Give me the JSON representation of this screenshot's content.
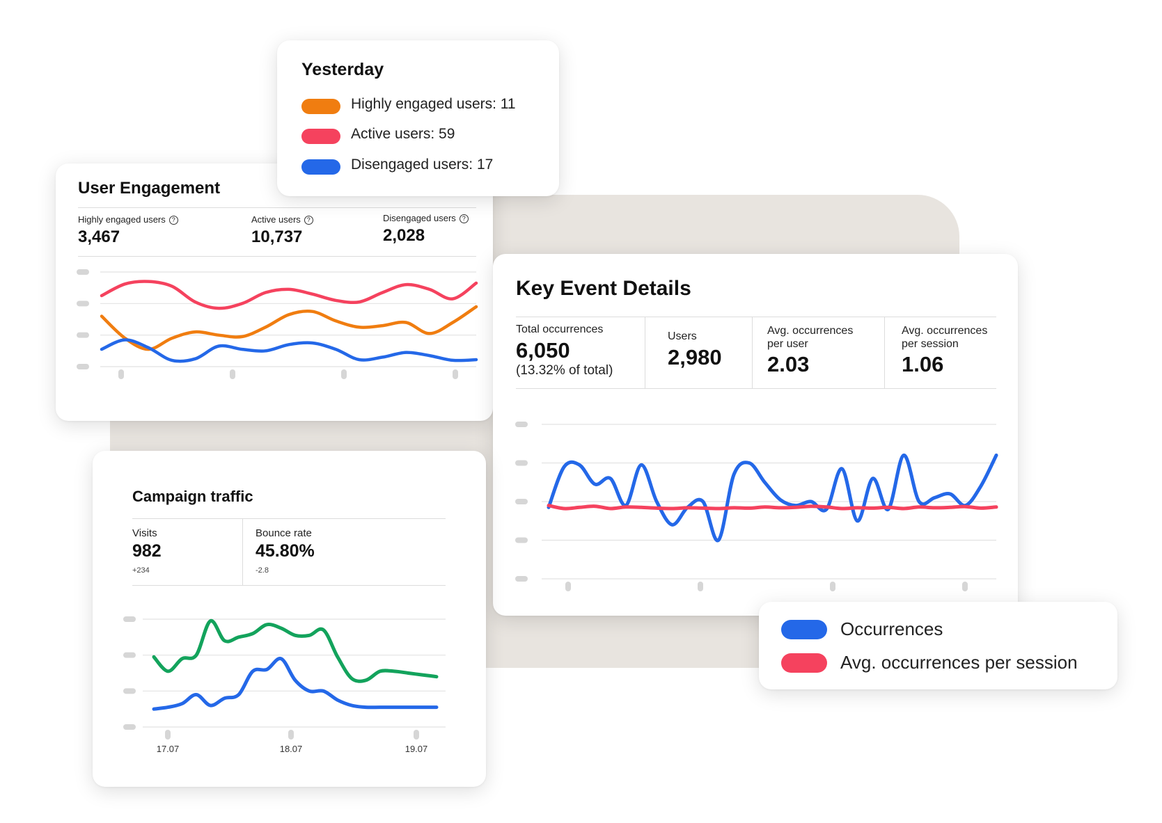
{
  "colors": {
    "orange": "#f07d10",
    "red": "#f5425e",
    "blue": "#2468e8",
    "green": "#13a35c",
    "grid": "#e2e2e2",
    "tick": "#d6d6d6"
  },
  "yesterday": {
    "title": "Yesterday",
    "items": [
      {
        "label": "Highly engaged users: 11",
        "color": "#f07d10"
      },
      {
        "label": "Active users: 59",
        "color": "#f5425e"
      },
      {
        "label": "Disengaged users: 17",
        "color": "#2468e8"
      }
    ]
  },
  "engagement": {
    "title": "User Engagement",
    "help_icon": "question-circle-icon",
    "metrics": [
      {
        "label": "Highly engaged users",
        "value": "3,467"
      },
      {
        "label": "Active users",
        "value": "10,737"
      },
      {
        "label": "Disengaged users",
        "value": "2,028"
      }
    ]
  },
  "key_event": {
    "title": "Key Event Details",
    "metrics": [
      {
        "label": "Total occurrences",
        "value": "6,050",
        "sub": "(13.32% of total)"
      },
      {
        "label": "Users",
        "value": "2,980"
      },
      {
        "label": "Avg. occurrences per user",
        "label_line1": "Avg. occurrences",
        "label_line2": "per user",
        "value": "2.03"
      },
      {
        "label": "Avg. occurrences per session",
        "label_line1": "Avg. occurrences",
        "label_line2": "per session",
        "value": "1.06"
      }
    ],
    "legend": [
      {
        "label": "Occurrences",
        "color": "#2468e8"
      },
      {
        "label": "Avg. occurrences per session",
        "color": "#f5425e"
      }
    ]
  },
  "campaign": {
    "title": "Campaign traffic",
    "metrics": [
      {
        "label": "Visits",
        "value": "982",
        "delta": "+234"
      },
      {
        "label": "Bounce rate",
        "value": "45.80%",
        "delta": "-2.8"
      }
    ],
    "x_labels": [
      "17.07",
      "18.07",
      "19.07"
    ]
  },
  "chart_data": [
    {
      "id": "user-engagement",
      "type": "line",
      "title": "User Engagement",
      "x": [
        0,
        1,
        2,
        3,
        4,
        5,
        6,
        7,
        8,
        9,
        10,
        11,
        12,
        13,
        14,
        15,
        16
      ],
      "ylim": [
        0,
        3
      ],
      "grid": true,
      "series": [
        {
          "name": "Active users",
          "color": "#f5425e",
          "values": [
            2.25,
            2.62,
            2.7,
            2.55,
            2.05,
            1.85,
            2.0,
            2.35,
            2.45,
            2.3,
            2.1,
            2.05,
            2.35,
            2.6,
            2.45,
            2.15,
            2.65
          ]
        },
        {
          "name": "Highly engaged users",
          "color": "#f07d10",
          "values": [
            1.6,
            0.9,
            0.55,
            0.9,
            1.1,
            1.0,
            0.95,
            1.25,
            1.65,
            1.75,
            1.45,
            1.25,
            1.3,
            1.4,
            1.05,
            1.4,
            1.9
          ]
        },
        {
          "name": "Disengaged users",
          "color": "#2468e8",
          "values": [
            0.55,
            0.85,
            0.6,
            0.2,
            0.25,
            0.65,
            0.55,
            0.5,
            0.7,
            0.75,
            0.55,
            0.22,
            0.3,
            0.45,
            0.35,
            0.2,
            0.22
          ]
        }
      ]
    },
    {
      "id": "key-event-details",
      "type": "line",
      "title": "Key Event Details",
      "x": [
        0,
        1,
        2,
        3,
        4,
        5,
        6,
        7,
        8,
        9,
        10,
        11,
        12,
        13,
        14,
        15,
        16,
        17,
        18,
        19,
        20,
        21,
        22,
        23,
        24,
        25,
        26,
        27,
        28,
        29
      ],
      "ylim": [
        0,
        4
      ],
      "grid": true,
      "series": [
        {
          "name": "Occurrences",
          "values": [
            1.85,
            2.9,
            2.95,
            2.45,
            2.6,
            1.9,
            2.95,
            2.0,
            1.4,
            1.85,
            2.0,
            1.0,
            2.7,
            3.0,
            2.5,
            2.05,
            1.9,
            2.0,
            1.8,
            2.85,
            1.5,
            2.6,
            1.8,
            3.2,
            2.0,
            2.1,
            2.2,
            1.9,
            2.4,
            3.2
          ]
        },
        {
          "name": "Avg. occurrences per session",
          "values": [
            1.9,
            1.82,
            1.85,
            1.88,
            1.82,
            1.86,
            1.85,
            1.83,
            1.82,
            1.84,
            1.83,
            1.82,
            1.84,
            1.83,
            1.86,
            1.84,
            1.85,
            1.88,
            1.86,
            1.82,
            1.84,
            1.83,
            1.85,
            1.82,
            1.86,
            1.84,
            1.85,
            1.87,
            1.83,
            1.86
          ]
        }
      ]
    },
    {
      "id": "campaign-traffic",
      "type": "line",
      "title": "Campaign traffic",
      "categories": [
        "17.07",
        "18.07",
        "19.07"
      ],
      "x": [
        0,
        1,
        2,
        3,
        4,
        5,
        6,
        7,
        8,
        9,
        10,
        11,
        12,
        13,
        14,
        15,
        16,
        17,
        18,
        19,
        20
      ],
      "ylim": [
        0,
        3
      ],
      "grid": true,
      "series": [
        {
          "name": "Green series",
          "values": [
            1.95,
            1.55,
            1.9,
            2.0,
            2.95,
            2.4,
            2.5,
            2.6,
            2.85,
            2.75,
            2.55,
            2.55,
            2.7,
            1.95,
            1.35,
            1.3,
            1.55,
            1.55,
            1.5,
            1.45,
            1.4
          ]
        },
        {
          "name": "Blue series",
          "values": [
            0.5,
            0.55,
            0.65,
            0.9,
            0.6,
            0.8,
            0.9,
            1.55,
            1.6,
            1.9,
            1.3,
            1.0,
            1.0,
            0.75,
            0.6,
            0.55,
            0.55,
            0.55,
            0.55,
            0.55,
            0.55
          ]
        }
      ]
    }
  ]
}
